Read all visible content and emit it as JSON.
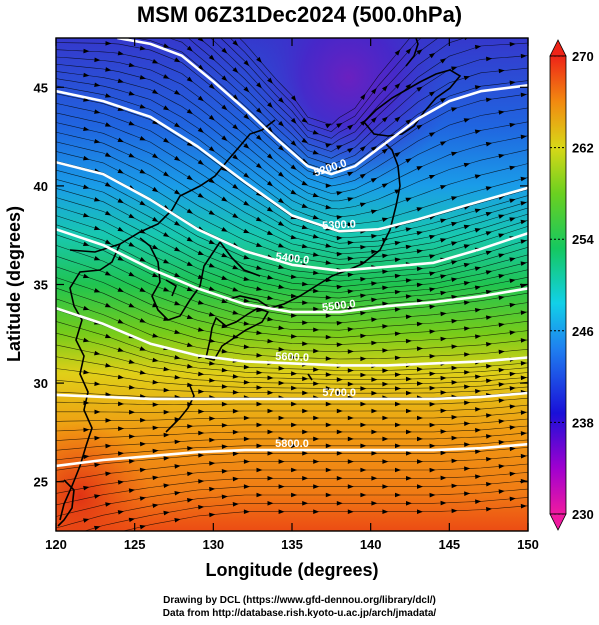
{
  "title": "MSM 06Z31Dec2024 (500.0hPa)",
  "x_axis": {
    "label": "Longitude (degrees)",
    "ticks": [
      120,
      125,
      130,
      135,
      140,
      145,
      150
    ],
    "range": [
      120,
      150
    ]
  },
  "y_axis": {
    "label": "Latitude  (degrees)",
    "ticks": [
      25,
      30,
      35,
      40,
      45
    ],
    "range": [
      22.5,
      47.5
    ]
  },
  "colorbar": {
    "labels": [
      270,
      262,
      254,
      246,
      238,
      230
    ],
    "min": 230,
    "max": 270
  },
  "contours": [
    {
      "label": "5200.0",
      "points": [
        [
          123.9,
          47.5
        ],
        [
          126,
          47.2
        ],
        [
          128,
          46.6
        ],
        [
          130,
          45.3
        ],
        [
          132,
          43.9
        ],
        [
          134,
          42.4
        ],
        [
          136,
          41.0
        ],
        [
          137.5,
          40.6
        ],
        [
          139,
          41.0
        ],
        [
          141,
          42.2
        ],
        [
          143,
          43.4
        ],
        [
          145,
          44.3
        ],
        [
          147,
          44.8
        ],
        [
          150,
          45.1
        ]
      ]
    },
    {
      "label": "5300.0",
      "points": [
        [
          120,
          44.8
        ],
        [
          123,
          44.3
        ],
        [
          126,
          43.5
        ],
        [
          129,
          42.0
        ],
        [
          132,
          40.2
        ],
        [
          135,
          38.5
        ],
        [
          138,
          37.7
        ],
        [
          140.5,
          37.8
        ],
        [
          143,
          38.3
        ],
        [
          146,
          39.0
        ],
        [
          150,
          39.9
        ]
      ]
    },
    {
      "label": "5400.0",
      "points": [
        [
          120,
          41.2
        ],
        [
          123,
          40.6
        ],
        [
          126,
          39.3
        ],
        [
          129,
          37.8
        ],
        [
          132,
          36.7
        ],
        [
          135,
          36.0
        ],
        [
          138,
          35.7
        ],
        [
          141,
          35.9
        ],
        [
          144,
          36.1
        ],
        [
          147,
          36.8
        ],
        [
          150,
          37.6
        ]
      ]
    },
    {
      "label": "5500.0",
      "points": [
        [
          120,
          37.8
        ],
        [
          123,
          37.0
        ],
        [
          126,
          35.8
        ],
        [
          129,
          34.8
        ],
        [
          132,
          34.0
        ],
        [
          135,
          33.6
        ],
        [
          138,
          33.6
        ],
        [
          141,
          33.9
        ],
        [
          144,
          34.1
        ],
        [
          147,
          34.4
        ],
        [
          150,
          34.8
        ]
      ]
    },
    {
      "label": "5600.0",
      "points": [
        [
          120,
          33.8
        ],
        [
          123,
          33.0
        ],
        [
          126,
          32.0
        ],
        [
          129,
          31.4
        ],
        [
          132,
          31.1
        ],
        [
          135,
          31.0
        ],
        [
          138,
          30.9
        ],
        [
          141,
          30.9
        ],
        [
          144,
          31.0
        ],
        [
          147,
          31.1
        ],
        [
          150,
          31.3
        ]
      ]
    },
    {
      "label": "5700.0",
      "points": [
        [
          120,
          29.4
        ],
        [
          123,
          29.3
        ],
        [
          126,
          29.2
        ],
        [
          129,
          29.2
        ],
        [
          132,
          29.2
        ],
        [
          135,
          29.2
        ],
        [
          138,
          29.2
        ],
        [
          141,
          29.2
        ],
        [
          144,
          29.2
        ],
        [
          147,
          29.3
        ],
        [
          150,
          29.5
        ]
      ]
    },
    {
      "label": "5800.0",
      "points": [
        [
          120,
          25.8
        ],
        [
          123,
          26.1
        ],
        [
          126,
          26.3
        ],
        [
          129,
          26.5
        ],
        [
          132,
          26.6
        ],
        [
          135,
          26.6
        ],
        [
          138,
          26.6
        ],
        [
          141,
          26.6
        ],
        [
          144,
          26.6
        ],
        [
          147,
          26.7
        ],
        [
          150,
          26.9
        ]
      ]
    }
  ],
  "credits": {
    "line1": "Drawing by DCL (https://www.gfd-dennou.org/library/dcl/)",
    "line2": "Data from http://database.rish.kyoto-u.ac.jp/arch/jmadata/"
  }
}
